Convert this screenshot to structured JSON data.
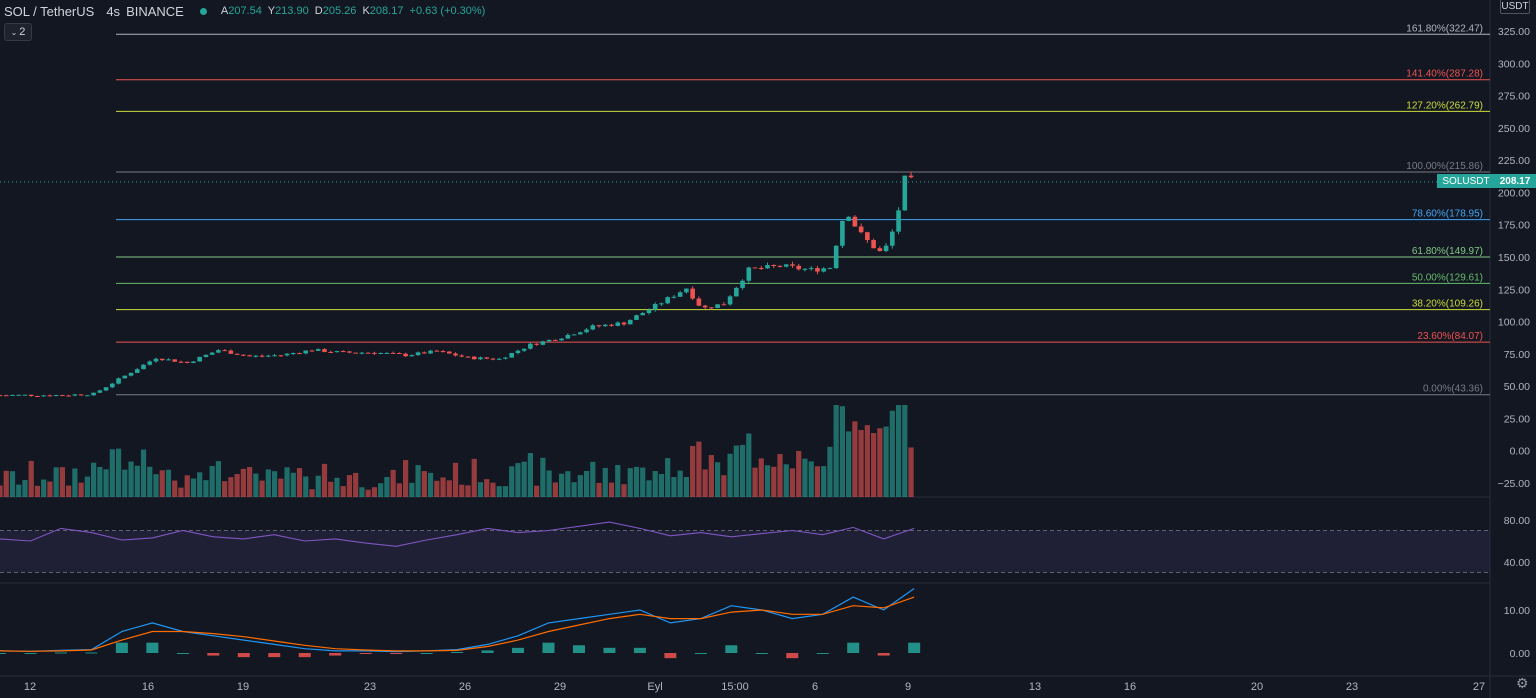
{
  "header": {
    "symbol": "SOL / TetherUS",
    "interval": "4s",
    "exchange": "BINANCE",
    "ohlc": [
      {
        "k": "A",
        "v": "207.54"
      },
      {
        "k": "Y",
        "v": "213.90"
      },
      {
        "k": "D",
        "v": "205.26"
      },
      {
        "k": "K",
        "v": "208.17"
      }
    ],
    "change": "+0.63 (+0.30%)"
  },
  "indicator_toggle": {
    "label": "2",
    "icon": "chevron-down-icon"
  },
  "currency_label": "USDT",
  "last_price": {
    "symbol_label": "SOLUSDT",
    "value": "208.17"
  },
  "settings_icon": "gear-icon",
  "colors": {
    "background": "#131722",
    "up": "#26a69a",
    "down": "#ef5350",
    "grid": "#1e222d",
    "text": "#b2b5be",
    "rsi": "#7e57c2",
    "macd": "#2196f3",
    "signal": "#ff6d00"
  },
  "chart_data": [
    {
      "type": "candlestick",
      "title": "SOL / TetherUS",
      "x_tick_labels": [
        "12",
        "16",
        "19",
        "23",
        "26",
        "29",
        "Eyl",
        "15:00",
        "6",
        "9",
        "13",
        "16",
        "20",
        "23",
        "27"
      ],
      "y_tick_labels": [
        "325.00",
        "300.00",
        "275.00",
        "250.00",
        "225.00",
        "200.00",
        "175.00",
        "150.00",
        "125.00",
        "100.00",
        "75.00",
        "50.00",
        "25.00",
        "0.00",
        "−25.00"
      ],
      "ylim": [
        -35,
        332
      ],
      "last_close": 208.17,
      "close_path": [
        {
          "day": 0,
          "close": 43
        },
        {
          "day": 2,
          "close": 43
        },
        {
          "day": 3,
          "close": 44
        },
        {
          "day": 4,
          "close": 58
        },
        {
          "day": 5,
          "close": 72
        },
        {
          "day": 6,
          "close": 68
        },
        {
          "day": 7,
          "close": 78
        },
        {
          "day": 8,
          "close": 73
        },
        {
          "day": 9,
          "close": 74
        },
        {
          "day": 10,
          "close": 78
        },
        {
          "day": 11,
          "close": 76
        },
        {
          "day": 12,
          "close": 76
        },
        {
          "day": 13,
          "close": 74
        },
        {
          "day": 14,
          "close": 77
        },
        {
          "day": 15,
          "close": 72
        },
        {
          "day": 16,
          "close": 71
        },
        {
          "day": 17,
          "close": 82
        },
        {
          "day": 18,
          "close": 88
        },
        {
          "day": 19,
          "close": 96
        },
        {
          "day": 20,
          "close": 99
        },
        {
          "day": 21,
          "close": 112
        },
        {
          "day": 22,
          "close": 126
        },
        {
          "day": 22.5,
          "close": 110
        },
        {
          "day": 23.2,
          "close": 114
        },
        {
          "day": 24,
          "close": 140
        },
        {
          "day": 25,
          "close": 143
        },
        {
          "day": 26,
          "close": 140
        },
        {
          "day": 26.6,
          "close": 142
        },
        {
          "day": 27.1,
          "close": 188
        },
        {
          "day": 27.5,
          "close": 170
        },
        {
          "day": 27.9,
          "close": 160
        },
        {
          "day": 28.3,
          "close": 152
        },
        {
          "day": 28.7,
          "close": 175
        },
        {
          "day": 29,
          "close": 210
        },
        {
          "day": 29.3,
          "close": 208.17
        }
      ],
      "fibonacci": [
        {
          "level": "161.80%",
          "price": 322.47,
          "label": "161.80%(322.47)",
          "color": "#b2b5be"
        },
        {
          "level": "141.40%",
          "price": 287.28,
          "label": "141.40%(287.28)",
          "color": "#ef5350"
        },
        {
          "level": "127.20%",
          "price": 262.79,
          "label": "127.20%(262.79)",
          "color": "#cddc39"
        },
        {
          "level": "100.00%",
          "price": 215.86,
          "label": "100.00%(215.86)",
          "color": "#787b86"
        },
        {
          "level": "78.60%",
          "price": 178.95,
          "label": "78.60%(178.95)",
          "color": "#42a5f5"
        },
        {
          "level": "61.80%",
          "price": 149.97,
          "label": "61.80%(149.97)",
          "color": "#81c784"
        },
        {
          "level": "50.00%",
          "price": 129.61,
          "label": "50.00%(129.61)",
          "color": "#66bb6a"
        },
        {
          "level": "38.20%",
          "price": 109.26,
          "label": "38.20%(109.26)",
          "color": "#cddc39"
        },
        {
          "level": "23.60%",
          "price": 84.07,
          "label": "23.60%(84.07)",
          "color": "#ef5350"
        },
        {
          "level": "0.00%",
          "price": 43.36,
          "label": "0.00%(43.36)",
          "color": "#787b86"
        }
      ],
      "volume": {
        "visible": true
      }
    },
    {
      "type": "line",
      "title": "",
      "series": [
        {
          "values": [
            62,
            60,
            72,
            68,
            61,
            63,
            70,
            64,
            62,
            66,
            60,
            62,
            58,
            55,
            61,
            66,
            72,
            68,
            70,
            74,
            78,
            72,
            65,
            68,
            64,
            67,
            70,
            66,
            73,
            62,
            72
          ]
        }
      ],
      "y_tick_labels": [
        "80.00",
        "40.00"
      ],
      "band": [
        30,
        70
      ]
    },
    {
      "type": "line",
      "title": "",
      "series": [
        {
          "values": [
            0.5,
            0.4,
            0.6,
            0.8,
            5,
            7,
            5,
            4,
            3,
            2,
            1,
            0.5,
            0.5,
            0.3,
            0.5,
            0.8,
            2,
            4,
            7,
            8,
            9,
            10,
            7,
            8,
            11,
            10,
            8,
            9,
            13,
            10,
            15
          ]
        },
        {
          "values": [
            0.5,
            0.4,
            0.5,
            0.7,
            3,
            5,
            5,
            4.5,
            3.8,
            2.8,
            1.8,
            1,
            0.7,
            0.5,
            0.5,
            0.6,
            1.5,
            3,
            5,
            6.5,
            8,
            9,
            8,
            8,
            9.5,
            10,
            9,
            9,
            11,
            10.5,
            13
          ]
        }
      ],
      "y_tick_labels": [
        "10.00",
        "0.00"
      ]
    }
  ]
}
